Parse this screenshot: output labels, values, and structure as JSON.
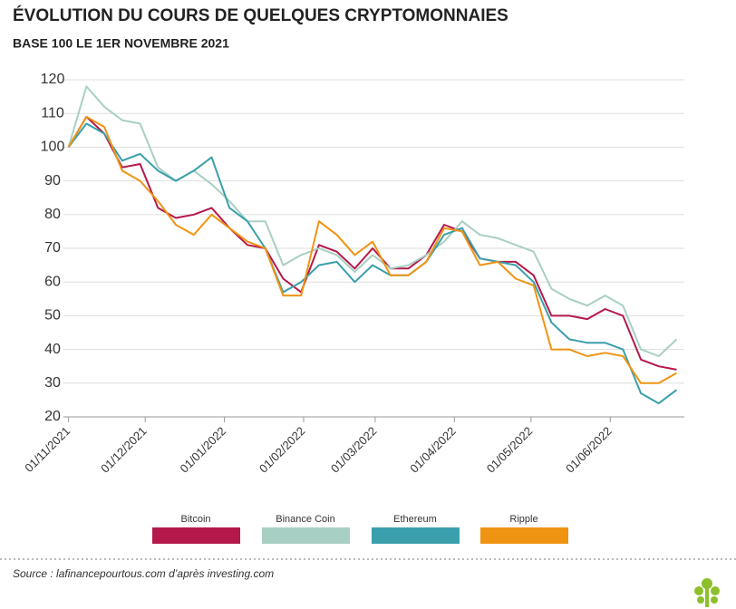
{
  "chart_data": {
    "type": "line",
    "title": "ÉVOLUTION DU COURS DE QUELQUES CRYPTOMONNAIES",
    "subtitle": "BASE 100 LE 1ER NOVEMBRE 2021",
    "source": "Source : lafinancepourtous.com d’après investing.com",
    "x": [
      "01/11/2021",
      "08/11/2021",
      "15/11/2021",
      "22/11/2021",
      "29/11/2021",
      "06/12/2021",
      "13/12/2021",
      "20/12/2021",
      "27/12/2021",
      "03/01/2022",
      "10/01/2022",
      "17/01/2022",
      "24/01/2022",
      "31/01/2022",
      "07/02/2022",
      "14/02/2022",
      "21/02/2022",
      "28/02/2022",
      "07/03/2022",
      "14/03/2022",
      "21/03/2022",
      "28/03/2022",
      "04/04/2022",
      "11/04/2022",
      "18/04/2022",
      "25/04/2022",
      "02/05/2022",
      "09/05/2022",
      "16/05/2022",
      "23/05/2022",
      "30/05/2022",
      "06/06/2022",
      "13/06/2022",
      "20/06/2022",
      "27/06/2022"
    ],
    "series": [
      {
        "name": "Bitcoin",
        "color": "#b5184a",
        "values": [
          100,
          109,
          104,
          94,
          95,
          82,
          79,
          80,
          82,
          76,
          71,
          70,
          61,
          57,
          71,
          69,
          64,
          70,
          64,
          64,
          68,
          77,
          75,
          67,
          66,
          66,
          62,
          50,
          50,
          49,
          52,
          50,
          37,
          35,
          34
        ]
      },
      {
        "name": "Binance Coin",
        "color": "#a8cfc3",
        "values": [
          100,
          118,
          112,
          108,
          107,
          94,
          90,
          93,
          89,
          84,
          78,
          78,
          65,
          68,
          70,
          68,
          63,
          68,
          64,
          65,
          68,
          72,
          78,
          74,
          73,
          71,
          69,
          58,
          55,
          53,
          56,
          53,
          40,
          38,
          43
        ]
      },
      {
        "name": "Ethereum",
        "color": "#3a9fab",
        "values": [
          100,
          107,
          104,
          96,
          98,
          93,
          90,
          93,
          97,
          82,
          78,
          70,
          57,
          60,
          65,
          66,
          60,
          65,
          62,
          62,
          66,
          74,
          76,
          67,
          66,
          65,
          60,
          48,
          43,
          42,
          42,
          40,
          27,
          24,
          28
        ]
      },
      {
        "name": "Ripple",
        "color": "#ef9412",
        "values": [
          100,
          109,
          106,
          93,
          90,
          84,
          77,
          74,
          80,
          76,
          72,
          70,
          56,
          56,
          78,
          74,
          68,
          72,
          62,
          62,
          66,
          76,
          75,
          65,
          66,
          61,
          59,
          40,
          40,
          38,
          39,
          38,
          30,
          30,
          33
        ]
      }
    ],
    "xlim": [
      "30/10/2021",
      "30/06/2022"
    ],
    "xticks": [
      "01/11/2021",
      "01/12/2021",
      "01/01/2022",
      "01/02/2022",
      "01/03/2022",
      "01/04/2022",
      "01/05/2022",
      "01/06/2022"
    ],
    "ylim": [
      20,
      120
    ],
    "yticks": [
      20,
      30,
      40,
      50,
      60,
      70,
      80,
      90,
      100,
      110,
      120
    ],
    "grid": true
  }
}
